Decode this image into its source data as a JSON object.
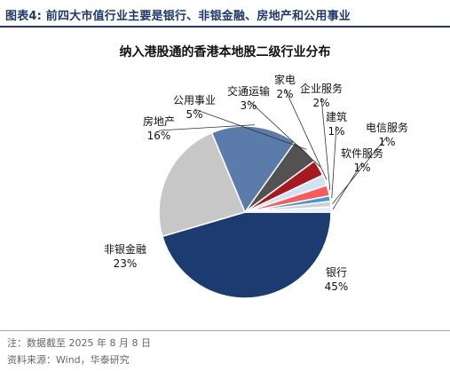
{
  "header": {
    "title": "图表4:  前四大市值行业主要是银行、非银金融、房地产和公用事业"
  },
  "footer": {
    "note": "注：数据截至 2025 年 8 月 8 日",
    "source": "资料来源：Wind，华泰研究"
  },
  "chart_data": {
    "type": "pie",
    "title": "纳入港股通的香港本地股二级行业分布",
    "slices": [
      {
        "name": "银行",
        "label": "45%",
        "value": 45,
        "color": "#1c3b70"
      },
      {
        "name": "非银金融",
        "label": "23%",
        "value": 23,
        "color": "#c7c7c7"
      },
      {
        "name": "房地产",
        "label": "16%",
        "value": 16,
        "color": "#5b7baa"
      },
      {
        "name": "公用事业",
        "label": "5%",
        "value": 5,
        "color": "#525252"
      },
      {
        "name": "交通运输",
        "label": "3%",
        "value": 3,
        "color": "#a8191f"
      },
      {
        "name": "家电",
        "label": "2%",
        "value": 2,
        "color": "#cfe2f2"
      },
      {
        "name": "企业服务",
        "label": "2%",
        "value": 2,
        "color": "#ff5a5a"
      },
      {
        "name": "建筑",
        "label": "1%",
        "value": 1,
        "color": "#3f9ad8"
      },
      {
        "name": "电信服务",
        "label": "1%",
        "value": 1,
        "color": "#cfcfcf"
      },
      {
        "name": "软件服务",
        "label": "1%",
        "value": 1,
        "color": "#e6eef6"
      }
    ]
  }
}
